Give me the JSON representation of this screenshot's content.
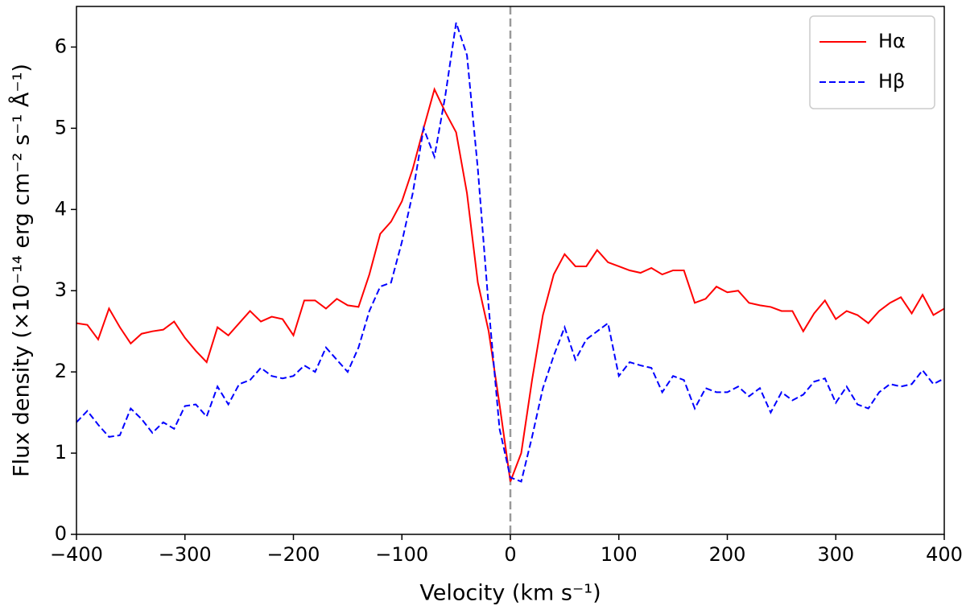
{
  "chart_data": {
    "type": "line",
    "xlabel": "Velocity (km s⁻¹)",
    "ylabel": "Flux density (×10⁻¹⁴ erg cm⁻² s⁻¹ Å⁻¹)",
    "x": [
      -400,
      -390,
      -380,
      -370,
      -360,
      -350,
      -340,
      -330,
      -320,
      -310,
      -300,
      -290,
      -280,
      -270,
      -260,
      -250,
      -240,
      -230,
      -220,
      -210,
      -200,
      -190,
      -180,
      -170,
      -160,
      -150,
      -140,
      -130,
      -120,
      -110,
      -100,
      -90,
      -80,
      -70,
      -60,
      -50,
      -40,
      -30,
      -20,
      -10,
      0,
      10,
      20,
      30,
      40,
      50,
      60,
      70,
      80,
      90,
      100,
      110,
      120,
      130,
      140,
      150,
      160,
      170,
      180,
      190,
      200,
      210,
      220,
      230,
      240,
      250,
      260,
      270,
      280,
      290,
      300,
      310,
      320,
      330,
      340,
      350,
      360,
      370,
      380,
      390,
      400
    ],
    "series": [
      {
        "name": "Hα",
        "color": "#ff0000",
        "linestyle": "solid",
        "values": [
          2.6,
          2.58,
          2.4,
          2.78,
          2.55,
          2.35,
          2.47,
          2.5,
          2.52,
          2.62,
          2.42,
          2.26,
          2.12,
          2.55,
          2.45,
          2.6,
          2.75,
          2.62,
          2.68,
          2.65,
          2.45,
          2.88,
          2.88,
          2.78,
          2.9,
          2.82,
          2.8,
          3.2,
          3.7,
          3.85,
          4.1,
          4.5,
          5.0,
          5.48,
          5.2,
          4.95,
          4.2,
          3.1,
          2.5,
          1.6,
          0.65,
          1.0,
          1.9,
          2.7,
          3.2,
          3.45,
          3.3,
          3.3,
          3.5,
          3.35,
          3.3,
          3.25,
          3.22,
          3.28,
          3.2,
          3.25,
          3.25,
          2.85,
          2.9,
          3.05,
          2.98,
          3.0,
          2.85,
          2.82,
          2.8,
          2.75,
          2.75,
          2.5,
          2.72,
          2.88,
          2.65,
          2.75,
          2.7,
          2.6,
          2.75,
          2.85,
          2.92,
          2.72,
          2.95,
          2.7,
          2.78
        ]
      },
      {
        "name": "Hβ",
        "color": "#0000ff",
        "linestyle": "dashed",
        "values": [
          1.38,
          1.52,
          1.35,
          1.2,
          1.22,
          1.55,
          1.42,
          1.25,
          1.38,
          1.3,
          1.58,
          1.6,
          1.45,
          1.82,
          1.6,
          1.85,
          1.9,
          2.05,
          1.95,
          1.92,
          1.95,
          2.08,
          2.0,
          2.3,
          2.15,
          2.0,
          2.3,
          2.75,
          3.05,
          3.1,
          3.6,
          4.2,
          5.0,
          4.65,
          5.4,
          6.3,
          5.9,
          4.5,
          2.8,
          1.3,
          0.7,
          0.65,
          1.2,
          1.8,
          2.2,
          2.55,
          2.15,
          2.4,
          2.5,
          2.6,
          1.95,
          2.12,
          2.08,
          2.05,
          1.75,
          1.95,
          1.9,
          1.55,
          1.8,
          1.75,
          1.75,
          1.82,
          1.7,
          1.8,
          1.5,
          1.75,
          1.65,
          1.72,
          1.88,
          1.92,
          1.62,
          1.82,
          1.6,
          1.55,
          1.75,
          1.85,
          1.82,
          1.85,
          2.02,
          1.85,
          1.92
        ]
      }
    ],
    "vline": 0,
    "vline_color": "#999999",
    "xlim": [
      -400,
      400
    ],
    "xticks": [
      {
        "value": -400,
        "label": "−400"
      },
      {
        "value": -300,
        "label": "−300"
      },
      {
        "value": -200,
        "label": "−200"
      },
      {
        "value": -100,
        "label": "−100"
      },
      0,
      100,
      200,
      300,
      400
    ],
    "ylim": [
      0,
      6.5
    ],
    "yticks": [
      0,
      1,
      2,
      3,
      4,
      5,
      6
    ],
    "legend": "upper right"
  }
}
